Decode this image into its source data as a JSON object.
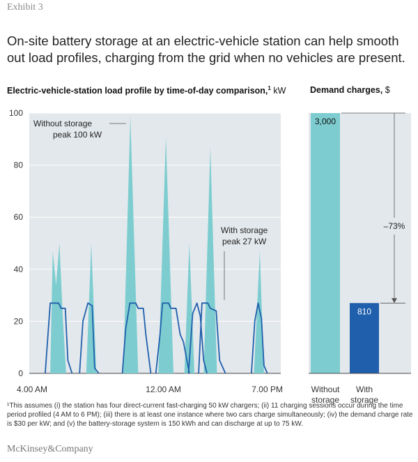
{
  "exhibit_label": "Exhibit 3",
  "headline": "On-site battery storage at an electric-vehicle station can help smooth out load profiles, charging from the grid when no vehicles are present.",
  "footnote": "¹This assumes (i) the station has four direct-current fast-charging 50 kW chargers; (ii) 11 charging sessions occur during the time period profiled (4 AM to 6 PM); (iii) there is at least one instance where two cars charge simultaneously; (iv) the demand charge rate is $30 per kW; and (v) the battery-storage system is 150 kWh and can discharge at up to 75 kW.",
  "logo": "McKinsey&Company",
  "colors": {
    "without_storage": "#7dcdd0",
    "with_storage": "#1f5fac",
    "plot_bg": "#e3e8ec",
    "grid": "#ffffff"
  },
  "chart_data": [
    {
      "type": "area",
      "title": "Electric-vehicle-station load profile by time-of-day comparison,",
      "title_sup": "1",
      "title_unit": "kW",
      "xlabel": "",
      "ylabel": "",
      "x_range": [
        4,
        19
      ],
      "ylim": [
        0,
        100
      ],
      "yticks": [
        0,
        20,
        40,
        60,
        80,
        100
      ],
      "xticks": [
        {
          "x": 4,
          "label": "4.00 AM"
        },
        {
          "x": 12,
          "label": "12.00 AM"
        },
        {
          "x": 19,
          "label": "7.00 PM"
        }
      ],
      "grid": true,
      "series": [
        {
          "name": "Without storage",
          "style": "area",
          "segments": [
            [
              [
                5.25,
                0
              ],
              [
                5.4,
                47
              ],
              [
                5.6,
                34
              ],
              [
                5.8,
                50
              ],
              [
                6.0,
                22
              ],
              [
                6.2,
                0
              ]
            ],
            [
              [
                7.4,
                0
              ],
              [
                7.7,
                50
              ],
              [
                8.0,
                0
              ]
            ],
            [
              [
                9.6,
                0
              ],
              [
                10.03,
                99
              ],
              [
                10.5,
                0
              ]
            ],
            [
              [
                11.7,
                0
              ],
              [
                12.15,
                91
              ],
              [
                12.6,
                0
              ]
            ],
            [
              [
                13.25,
                0
              ],
              [
                13.55,
                50
              ],
              [
                13.85,
                0
              ]
            ],
            [
              [
                14.4,
                0
              ],
              [
                14.8,
                87
              ],
              [
                15.2,
                0
              ]
            ],
            [
              [
                17.4,
                0
              ],
              [
                17.75,
                47
              ],
              [
                18.0,
                0
              ]
            ]
          ]
        },
        {
          "name": "With storage",
          "style": "line",
          "segments": [
            [
              [
                4.95,
                0
              ],
              [
                5.25,
                27
              ],
              [
                5.75,
                27
              ],
              [
                5.9,
                25
              ],
              [
                6.15,
                25
              ],
              [
                6.3,
                5
              ],
              [
                6.55,
                0
              ]
            ],
            [
              [
                7.0,
                0
              ],
              [
                7.2,
                20
              ],
              [
                7.5,
                27
              ],
              [
                7.75,
                26
              ],
              [
                7.9,
                2
              ],
              [
                8.15,
                0
              ]
            ],
            [
              [
                9.55,
                0
              ],
              [
                9.75,
                17
              ],
              [
                10.0,
                27
              ],
              [
                10.35,
                27
              ],
              [
                10.5,
                25
              ],
              [
                10.8,
                25
              ],
              [
                10.95,
                15
              ],
              [
                11.25,
                0
              ]
            ],
            [
              [
                11.55,
                0
              ],
              [
                11.8,
                15
              ],
              [
                11.95,
                27
              ],
              [
                12.3,
                27
              ],
              [
                12.45,
                25
              ],
              [
                12.75,
                25
              ],
              [
                13.0,
                15
              ],
              [
                13.2,
                12
              ],
              [
                13.55,
                0
              ]
            ],
            [
              [
                13.5,
                0
              ],
              [
                13.75,
                23
              ],
              [
                14.0,
                27
              ],
              [
                14.2,
                22
              ],
              [
                14.4,
                5
              ],
              [
                14.6,
                0
              ]
            ],
            [
              [
                14.1,
                0
              ],
              [
                14.3,
                27
              ],
              [
                14.65,
                27
              ],
              [
                14.8,
                25
              ],
              [
                15.15,
                24
              ],
              [
                15.35,
                5
              ],
              [
                15.7,
                0
              ]
            ],
            [
              [
                17.25,
                0
              ],
              [
                17.45,
                20
              ],
              [
                17.65,
                27
              ],
              [
                17.85,
                21
              ],
              [
                18.0,
                3
              ],
              [
                18.2,
                0
              ]
            ]
          ]
        }
      ],
      "annotations": [
        {
          "id": "without",
          "lines": [
            "Without storage",
            "peak 100 kW"
          ]
        },
        {
          "id": "with",
          "lines": [
            "With storage",
            "peak 27 kW"
          ]
        }
      ]
    },
    {
      "type": "bar",
      "title": "Demand charges,",
      "title_unit": "$",
      "categories": [
        [
          "Without",
          "storage"
        ],
        [
          "With",
          "storage"
        ]
      ],
      "values": [
        3000,
        810
      ],
      "value_labels": [
        "3,000",
        "810"
      ],
      "ylim": [
        0,
        3000
      ],
      "change_label": "–73%"
    }
  ]
}
